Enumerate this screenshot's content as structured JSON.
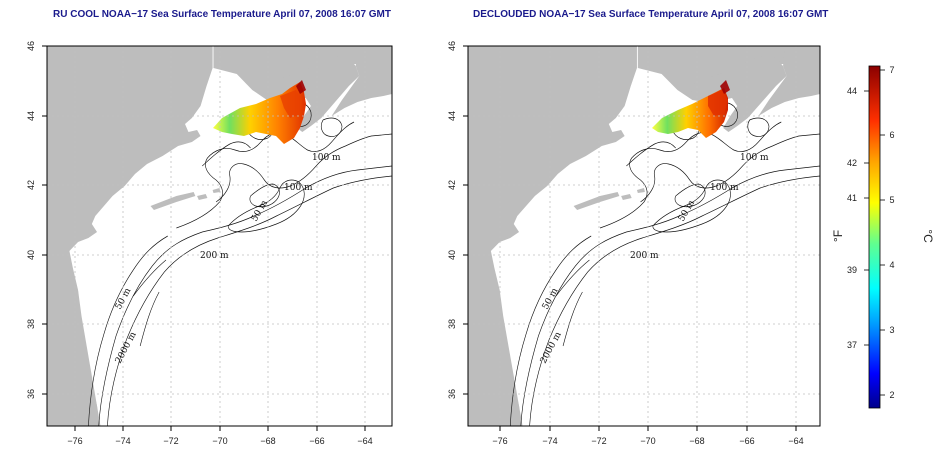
{
  "titles": {
    "left": "RU COOL NOAA−17 Sea Surface Temperature April 07, 2008 16:07 GMT",
    "right": "DECLOUDED NOAA−17 Sea Surface Temperature April 07, 2008 16:07 GMT"
  },
  "axes": {
    "x_ticks": [
      "−76",
      "−74",
      "−72",
      "−70",
      "−68",
      "−66",
      "−64"
    ],
    "y_ticks": [
      "46",
      "44",
      "42",
      "40",
      "38",
      "36"
    ],
    "x_range": [
      -77.2,
      -63
    ],
    "y_range": [
      35,
      46
    ]
  },
  "contour_labels": {
    "left": [
      "100 m",
      "100 m",
      "50 m",
      "200 m",
      "50 m",
      "2000 m"
    ],
    "right": [
      "100 m",
      "100 m",
      "50 m",
      "200 m",
      "50 m",
      "2000 m"
    ]
  },
  "colorbar": {
    "unit_f": "°F",
    "unit_c": "°C",
    "f_ticks": [
      "44",
      "42",
      "41",
      "39",
      "37"
    ],
    "c_ticks": [
      "7",
      "6",
      "5",
      "4",
      "3",
      "2"
    ],
    "range_c": [
      1.8,
      7
    ],
    "colors": [
      "#00008b",
      "#0000ff",
      "#00a0ff",
      "#00ffff",
      "#60ff90",
      "#ffff00",
      "#ffa500",
      "#ff3000",
      "#8b0000"
    ]
  },
  "map_colors": {
    "land": "#bdbdbd",
    "ocean": "#ffffff",
    "grid": "#bbbbbb"
  }
}
